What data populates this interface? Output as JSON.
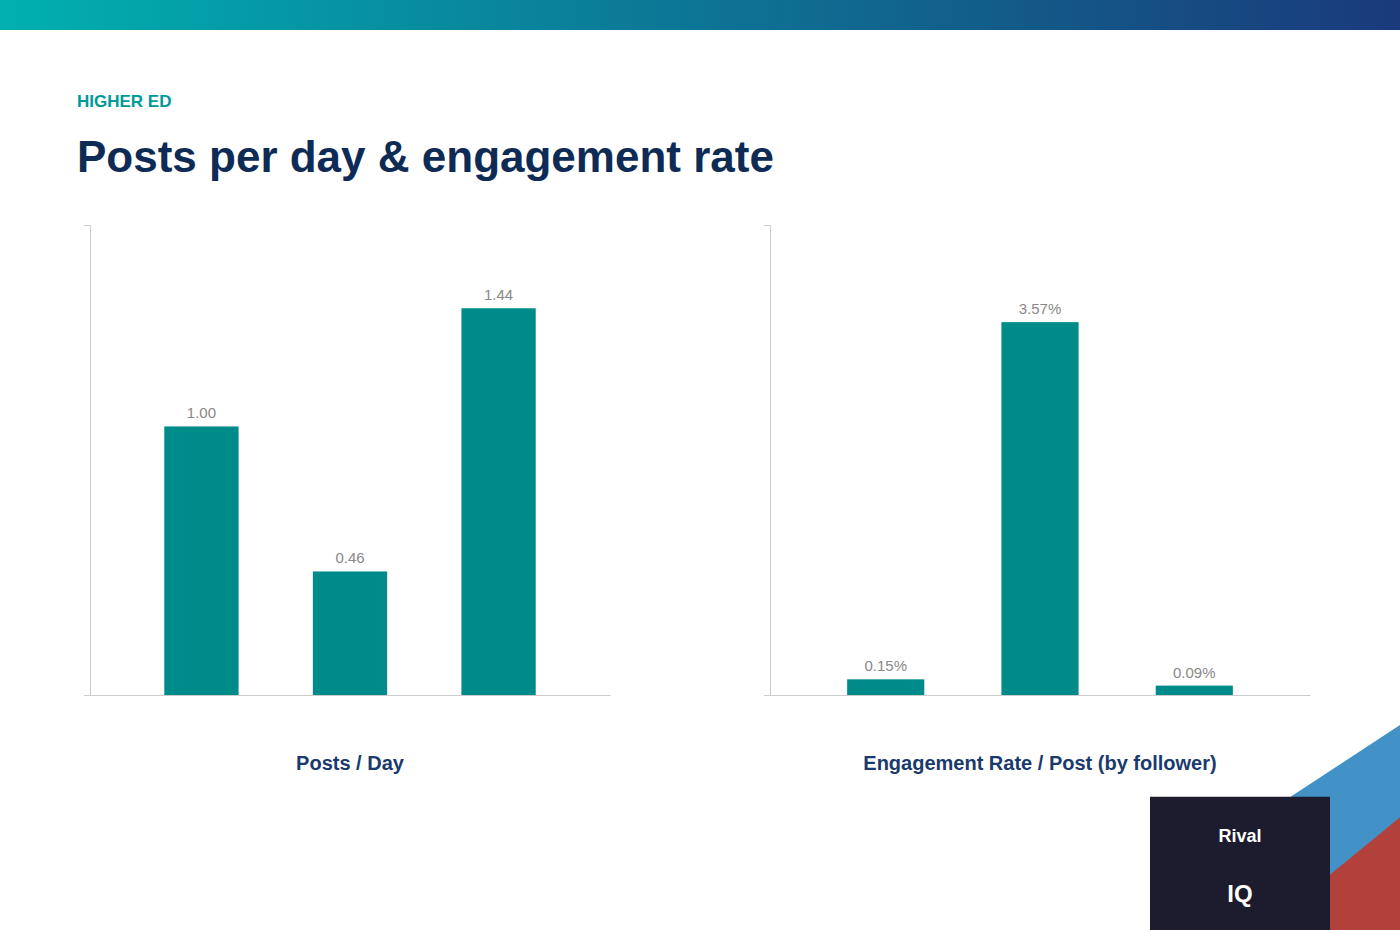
{
  "title": "Posts per day & engagement rate",
  "subtitle": "HIGHER ED",
  "annotations": [
    "Rival",
    "IQ"
  ],
  "chart_data": [
    {
      "type": "bar",
      "title": "Posts / Day",
      "categories": [
        null,
        null,
        null
      ],
      "values": [
        1.0,
        0.46,
        1.44
      ],
      "value_labels": [
        "1.00",
        "0.46",
        "1.44"
      ],
      "color": "#008b8b",
      "ylim": [
        0,
        1.75
      ],
      "grid": false,
      "data_labels": true,
      "tick_labels": false
    },
    {
      "type": "bar",
      "title": "Engagement Rate / Post (by follower)",
      "categories": [
        null,
        null,
        null
      ],
      "values": [
        0.0015,
        0.0357,
        0.0009
      ],
      "value_labels": [
        "0.15%",
        "3.57%",
        "0.09%"
      ],
      "color": "#008b8b",
      "ylim": [
        0,
        0.045
      ],
      "grid": false,
      "data_labels": true,
      "tick_labels": false
    }
  ]
}
